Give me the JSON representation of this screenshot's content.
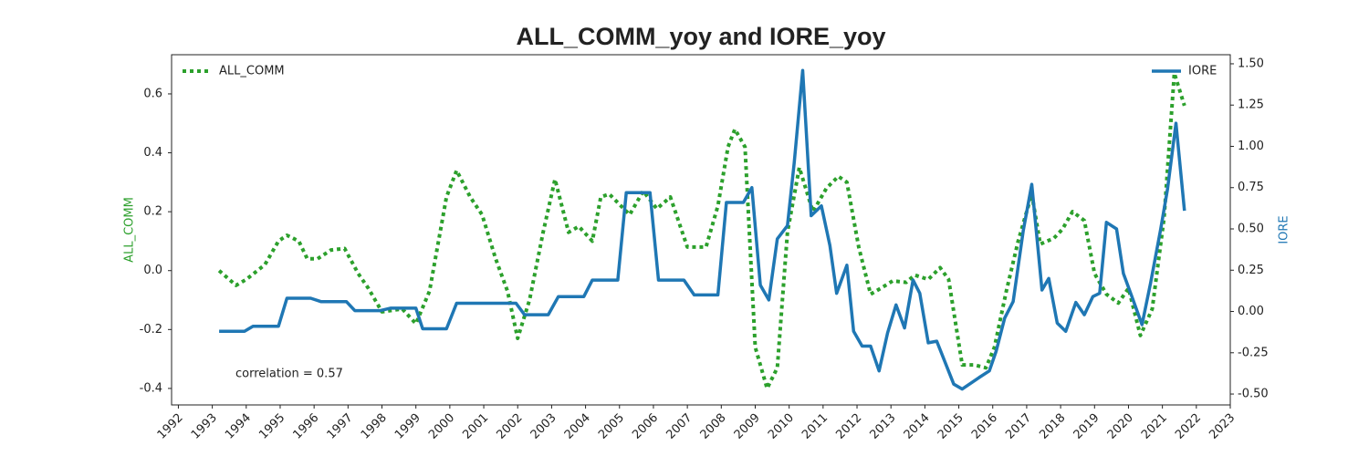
{
  "chart_data": {
    "type": "line",
    "title": "ALL_COMM_yoy and IORE_yoy",
    "y_label": "ALL_COMM",
    "y2_label": "IORE",
    "annotation": "correlation = 0.57",
    "xlim": [
      1991.8,
      2023.0
    ],
    "xticks": [
      1992,
      1993,
      1994,
      1995,
      1996,
      1997,
      1998,
      1999,
      2000,
      2001,
      2002,
      2003,
      2004,
      2005,
      2006,
      2007,
      2008,
      2009,
      2010,
      2011,
      2012,
      2013,
      2014,
      2015,
      2016,
      2017,
      2018,
      2019,
      2020,
      2021,
      2022,
      2023
    ],
    "ylim": [
      -0.456,
      0.733
    ],
    "yticks": [
      -0.4,
      -0.2,
      {
        "value": 0,
        "label": "0.0"
      },
      0.2,
      0.4,
      0.6
    ],
    "y2lim": [
      -0.566,
      1.555
    ],
    "y2ticks": [
      {
        "value": -0.5,
        "label": "-0.50"
      },
      -0.25,
      {
        "value": 0,
        "label": "0.00"
      },
      0.25,
      {
        "value": 0.5,
        "label": "0.50"
      },
      0.75,
      {
        "value": 1,
        "label": "1.00"
      },
      1.25,
      {
        "value": 1.5,
        "label": "1.50"
      }
    ],
    "legend": "split-top",
    "series": [
      {
        "name": "ALL_COMM",
        "color": "#2ca02c",
        "style": "dotted",
        "axis": "y",
        "x": [
          1993.2,
          1993.7,
          1994.0,
          1994.55,
          1994.95,
          1995.2,
          1995.55,
          1995.8,
          1996.1,
          1996.5,
          1996.9,
          1997.3,
          1997.6,
          1998.0,
          1998.6,
          1999.0,
          1999.4,
          1999.9,
          2000.2,
          2000.6,
          2000.95,
          2001.35,
          2001.7,
          2002.0,
          2002.35,
          2002.75,
          2003.1,
          2003.5,
          2003.8,
          2004.2,
          2004.45,
          2004.7,
          2005.3,
          2005.7,
          2006.1,
          2006.5,
          2007.0,
          2007.55,
          2007.9,
          2008.2,
          2008.4,
          2008.7,
          2009.0,
          2009.35,
          2009.65,
          2009.95,
          2010.3,
          2010.7,
          2011.1,
          2011.45,
          2011.7,
          2012.05,
          2012.4,
          2012.7,
          2013.05,
          2013.45,
          2013.7,
          2014.1,
          2014.45,
          2014.7,
          2015.1,
          2015.45,
          2015.8,
          2016.05,
          2016.4,
          2016.75,
          2017.15,
          2017.4,
          2017.8,
          2018.05,
          2018.35,
          2018.7,
          2019.0,
          2019.35,
          2019.7,
          2020.0,
          2020.35,
          2020.7,
          2021.05,
          2021.35,
          2021.65
        ],
        "values": [
          0.0,
          -0.05,
          -0.03,
          0.02,
          0.1,
          0.12,
          0.1,
          0.04,
          0.04,
          0.07,
          0.075,
          -0.01,
          -0.06,
          -0.14,
          -0.13,
          -0.18,
          -0.07,
          0.25,
          0.34,
          0.25,
          0.19,
          0.04,
          -0.07,
          -0.23,
          -0.1,
          0.13,
          0.31,
          0.13,
          0.15,
          0.1,
          0.25,
          0.26,
          0.19,
          0.27,
          0.21,
          0.25,
          0.08,
          0.08,
          0.22,
          0.42,
          0.48,
          0.42,
          -0.26,
          -0.4,
          -0.33,
          0.13,
          0.35,
          0.2,
          0.28,
          0.32,
          0.3,
          0.08,
          -0.08,
          -0.06,
          -0.035,
          -0.04,
          -0.015,
          -0.03,
          0.01,
          -0.03,
          -0.32,
          -0.32,
          -0.33,
          -0.26,
          -0.07,
          0.1,
          0.26,
          0.09,
          0.11,
          0.14,
          0.2,
          0.17,
          -0.01,
          -0.08,
          -0.11,
          -0.06,
          -0.22,
          -0.13,
          0.18,
          0.67,
          0.56
        ]
      },
      {
        "name": "IORE",
        "color": "#1f77b4",
        "style": "solid",
        "axis": "y2",
        "x": [
          1993.2,
          1993.95,
          1994.2,
          1994.95,
          1995.2,
          1995.9,
          1996.2,
          1996.95,
          1997.2,
          1997.95,
          1998.25,
          1999.0,
          1999.2,
          1999.9,
          2000.2,
          2001.95,
          2002.2,
          2002.9,
          2003.2,
          2003.95,
          2004.2,
          2004.95,
          2005.2,
          2005.9,
          2006.15,
          2006.9,
          2007.2,
          2007.9,
          2008.15,
          2008.65,
          2008.9,
          2009.15,
          2009.4,
          2009.65,
          2009.95,
          2010.15,
          2010.4,
          2010.65,
          2010.95,
          2011.2,
          2011.4,
          2011.7,
          2011.9,
          2012.15,
          2012.4,
          2012.65,
          2012.9,
          2013.15,
          2013.4,
          2013.65,
          2013.85,
          2014.1,
          2014.35,
          2014.85,
          2015.1,
          2015.6,
          2015.9,
          2016.1,
          2016.35,
          2016.6,
          2016.9,
          2017.15,
          2017.45,
          2017.65,
          2017.9,
          2018.15,
          2018.45,
          2018.7,
          2018.95,
          2019.15,
          2019.35,
          2019.65,
          2019.85,
          2020.1,
          2020.4,
          2020.65,
          2020.95,
          2021.15,
          2021.4,
          2021.65
        ],
        "values": [
          -0.12,
          -0.12,
          -0.09,
          -0.09,
          0.08,
          0.08,
          0.06,
          0.06,
          0.005,
          0.005,
          0.02,
          0.02,
          -0.105,
          -0.105,
          0.05,
          0.05,
          -0.02,
          -0.02,
          0.09,
          0.09,
          0.19,
          0.19,
          0.72,
          0.72,
          0.19,
          0.19,
          0.1,
          0.1,
          0.66,
          0.66,
          0.75,
          0.16,
          0.07,
          0.44,
          0.52,
          0.9,
          1.46,
          0.58,
          0.64,
          0.4,
          0.11,
          0.28,
          -0.12,
          -0.21,
          -0.21,
          -0.36,
          -0.13,
          0.04,
          -0.1,
          0.19,
          0.11,
          -0.19,
          -0.18,
          -0.44,
          -0.47,
          -0.4,
          -0.36,
          -0.24,
          -0.04,
          0.06,
          0.49,
          0.77,
          0.13,
          0.2,
          -0.07,
          -0.12,
          0.055,
          -0.02,
          0.09,
          0.11,
          0.54,
          0.5,
          0.23,
          0.09,
          -0.08,
          0.17,
          0.5,
          0.74,
          1.14,
          0.61
        ]
      }
    ]
  }
}
